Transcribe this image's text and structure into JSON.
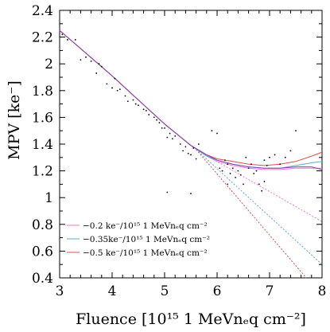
{
  "chart_data": {
    "type": "scatter",
    "xlabel": "Fluence [10¹⁵ 1 MeVnₑq cm⁻²]",
    "ylabel": "MPV  [ke⁻]",
    "xlim": [
      3,
      8
    ],
    "ylim": [
      0.4,
      2.4
    ],
    "xticks": [
      "3",
      "4",
      "5",
      "6",
      "7",
      "8"
    ],
    "yticks": [
      "0.4",
      "0.6",
      "0.8",
      "1",
      "1.2",
      "1.4",
      "1.6",
      "1.8",
      "2",
      "2.2",
      "2.4"
    ],
    "legend_position": "bottom-left",
    "series": [
      {
        "name": "−0.2 ke⁻/10¹⁵ 1 MeVnₑq cm⁻²",
        "color": "#e879d8",
        "x": [
          3.0,
          3.5,
          4.0,
          4.5,
          5.0,
          5.5,
          5.8,
          6.0,
          6.3,
          6.6,
          6.9,
          7.2,
          7.5,
          7.8,
          8.0
        ],
        "y": [
          2.25,
          2.08,
          1.91,
          1.73,
          1.55,
          1.39,
          1.31,
          1.27,
          1.24,
          1.22,
          1.21,
          1.21,
          1.22,
          1.22,
          1.22
        ]
      },
      {
        "name": "−0.35ke⁻/10¹⁵ 1 MeVnₑq cm⁻²",
        "color": "#5aa7e0",
        "x": [
          3.0,
          3.5,
          4.0,
          4.5,
          5.0,
          5.5,
          5.8,
          6.0,
          6.3,
          6.6,
          6.9,
          7.2,
          7.5,
          7.8,
          8.0
        ],
        "y": [
          2.25,
          2.08,
          1.91,
          1.73,
          1.55,
          1.39,
          1.31,
          1.28,
          1.25,
          1.23,
          1.22,
          1.22,
          1.24,
          1.26,
          1.27
        ]
      },
      {
        "name": "−0.5 ke⁻/10¹⁵ 1 MeVnₑq cm⁻²",
        "color": "#e04e4e",
        "x": [
          3.0,
          3.5,
          4.0,
          4.5,
          5.0,
          5.5,
          5.8,
          6.0,
          6.3,
          6.6,
          6.9,
          7.2,
          7.5,
          7.8,
          8.0
        ],
        "y": [
          2.25,
          2.08,
          1.91,
          1.73,
          1.55,
          1.39,
          1.32,
          1.29,
          1.27,
          1.25,
          1.24,
          1.25,
          1.27,
          1.31,
          1.34
        ]
      },
      {
        "color": "#8b3fb0",
        "x": [
          3.0,
          3.5,
          4.0,
          4.5,
          5.0,
          5.5,
          5.8,
          6.0,
          6.3,
          6.6,
          6.9,
          7.2,
          7.5,
          7.8,
          8.0
        ],
        "y": [
          2.25,
          2.08,
          1.91,
          1.73,
          1.55,
          1.39,
          1.32,
          1.28,
          1.25,
          1.23,
          1.22,
          1.22,
          1.23,
          1.23,
          1.21
        ]
      }
    ],
    "extrapolations": [
      {
        "color": "#e879d8",
        "x": [
          5.6,
          8.0
        ],
        "y": [
          1.36,
          0.82
        ]
      },
      {
        "color": "#5aa7e0",
        "x": [
          5.6,
          8.0
        ],
        "y": [
          1.36,
          0.5
        ]
      },
      {
        "color": "#e04e4e",
        "x": [
          5.6,
          7.7
        ],
        "y": [
          1.36,
          0.4
        ]
      }
    ],
    "points": {
      "x": [
        3.05,
        3.15,
        3.3,
        3.4,
        3.5,
        3.6,
        3.7,
        3.75,
        3.8,
        3.9,
        4.0,
        4.05,
        4.1,
        4.15,
        4.25,
        4.3,
        4.4,
        4.45,
        4.5,
        4.6,
        4.65,
        4.7,
        4.8,
        4.85,
        4.9,
        4.95,
        5.0,
        5.05,
        5.1,
        5.15,
        5.2,
        5.3,
        5.35,
        5.4,
        5.45,
        5.5,
        5.55,
        5.6,
        5.65,
        5.9,
        6.0,
        6.05,
        6.1,
        6.15,
        6.2,
        6.25,
        6.3,
        6.35,
        6.4,
        6.45,
        6.5,
        6.55,
        6.6,
        6.65,
        6.7,
        6.75,
        6.8,
        6.85,
        6.9,
        6.95,
        7.0,
        7.1,
        7.2,
        7.3,
        7.4,
        7.5,
        5.05,
        5.5,
        6.2,
        6.9
      ],
      "y": [
        2.22,
        2.18,
        2.18,
        2.03,
        2.05,
        2.02,
        1.93,
        2.0,
        1.98,
        1.85,
        1.82,
        1.89,
        1.8,
        1.81,
        1.76,
        1.72,
        1.73,
        1.7,
        1.69,
        1.66,
        1.65,
        1.62,
        1.6,
        1.58,
        1.56,
        1.52,
        1.52,
        1.45,
        1.48,
        1.44,
        1.46,
        1.4,
        1.35,
        1.38,
        1.33,
        1.32,
        1.37,
        1.29,
        1.4,
        1.5,
        1.48,
        1.22,
        1.2,
        1.28,
        1.25,
        1.18,
        1.22,
        1.15,
        1.2,
        1.17,
        1.1,
        1.3,
        1.22,
        1.25,
        1.18,
        1.2,
        1.1,
        1.05,
        1.28,
        1.24,
        1.3,
        1.32,
        1.25,
        1.3,
        1.35,
        1.5,
        1.04,
        1.03,
        1.1,
        1.12
      ]
    }
  }
}
